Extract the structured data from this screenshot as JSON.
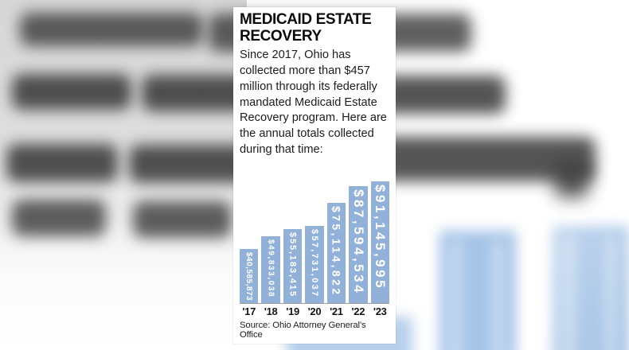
{
  "colors": {
    "bar_fill": "#92b1d8",
    "bar_label": "#ffffff",
    "axis_line": "#9a9a9a",
    "bg_bar_blue": "#a6c4e7",
    "bg_bar_blue_light": "#b7cfeb"
  },
  "panel": {
    "title": "MEDICAID ESTATE RECOVERY",
    "intro": "Since 2017, Ohio has collected more than $457 million through its federally mandated Medicaid Estate Recovery program. Here are the annual totals collected during that time:",
    "source": "Source: Ohio Attorney General's Office"
  },
  "chart_data": {
    "type": "bar",
    "title": "MEDICAID ESTATE RECOVERY",
    "categories": [
      "'17",
      "'18",
      "'19",
      "'20",
      "'21",
      "'22",
      "'23"
    ],
    "values": [
      40585873,
      49833038,
      55183415,
      57731037,
      75114822,
      87594534,
      91145995
    ],
    "value_labels": [
      "$40,585,873",
      "$49,833,038",
      "$55,183,415",
      "$57,731,037",
      "$75,114,822",
      "$87,594,534",
      "$91,145,995"
    ],
    "xlabel": "",
    "ylabel": "",
    "ylim": [
      0,
      91145995
    ],
    "grid": false,
    "legend": false,
    "bar_orientation": "vertical",
    "value_label_position": "inside-top-rotated",
    "source": "Source: Ohio Attorney General's Office"
  }
}
